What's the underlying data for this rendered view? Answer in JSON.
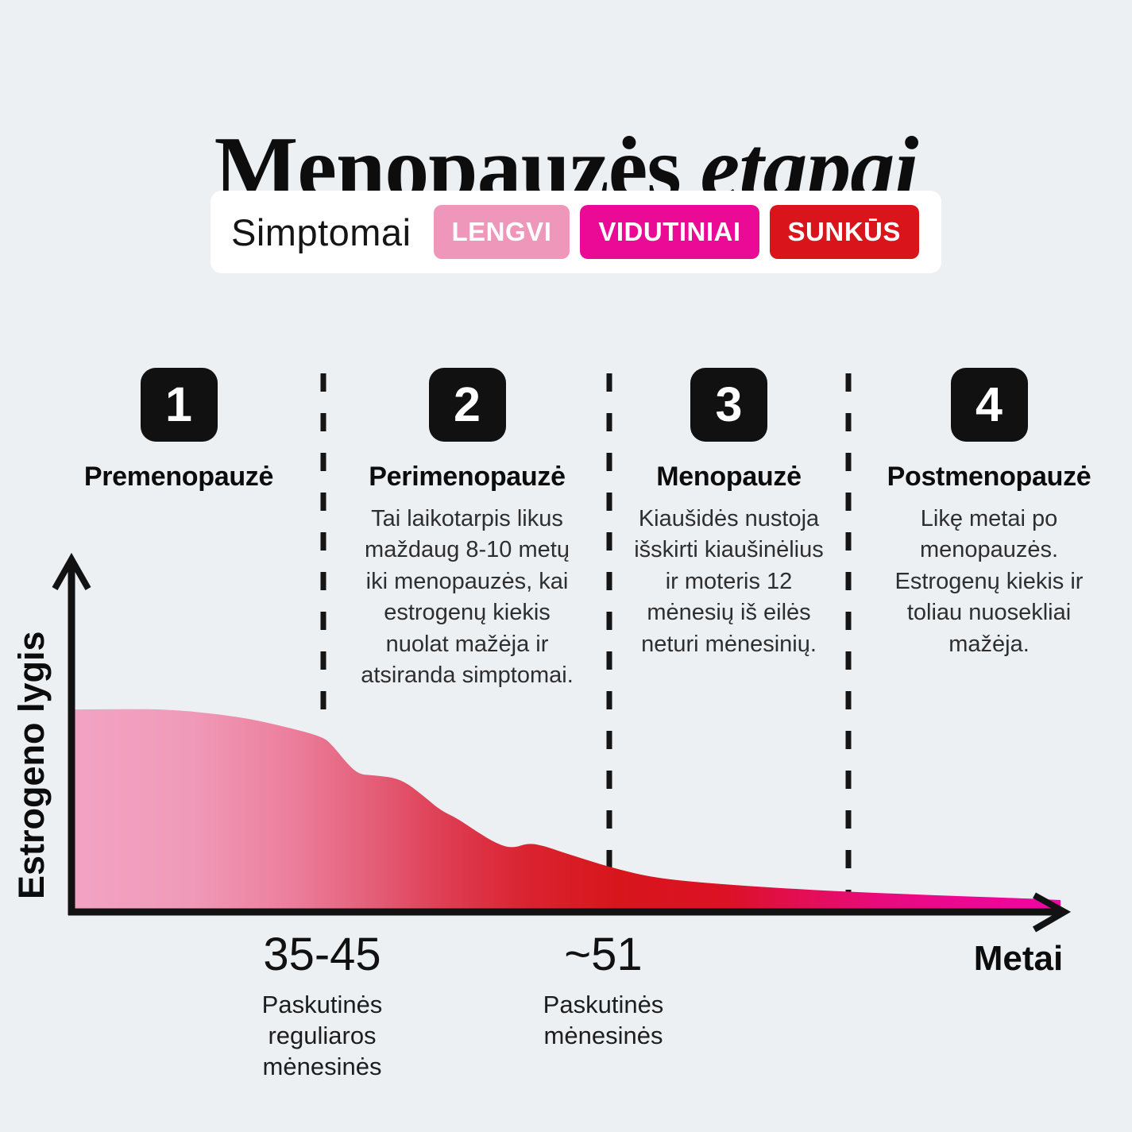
{
  "header": {
    "title_main": "Menopauzės",
    "title_accent": "etapai"
  },
  "legend": {
    "label": "Simptomai",
    "badges": [
      {
        "label": "LENGVI",
        "color": "#ee97ba"
      },
      {
        "label": "VIDUTINIAI",
        "color": "#eb0a96"
      },
      {
        "label": "SUNKŪS",
        "color": "#d9141b"
      }
    ]
  },
  "stages": [
    {
      "number": "1",
      "name": "Premenopauzė",
      "description": ""
    },
    {
      "number": "2",
      "name": "Perimenopauzė",
      "description": "Tai laikotarpis likus maždaug 8-10 metų iki menopauzės, kai estrogenų kiekis nuolat mažėja ir atsiranda simptomai."
    },
    {
      "number": "3",
      "name": "Menopauzė",
      "description": "Kiaušidės nustoja išskirti kiaušinėlius ir moteris 12 mėnesių iš eilės neturi mėnesinių."
    },
    {
      "number": "4",
      "name": "Postmenopauzė",
      "description": "Likę metai po menopauzės. Estrogenų kiekis ir toliau nuosekliai mažėja."
    }
  ],
  "chart_data": {
    "type": "area",
    "title": "",
    "xlabel": "Metai",
    "ylabel": "Estrogeno lygis",
    "x_markers": [
      {
        "value": "35-45",
        "caption": "Paskutinės reguliaros mėnesinės"
      },
      {
        "value": "~51",
        "caption": "Paskutinės mėnesinės"
      }
    ],
    "axis_color": "#121212",
    "grid": false,
    "curve_units": "normalized x (years along axis) vs estrogen level 0-1",
    "curve": [
      [
        0.0,
        0.988
      ],
      [
        0.05,
        0.99
      ],
      [
        0.104,
        0.988
      ],
      [
        0.169,
        0.953
      ],
      [
        0.21,
        0.911
      ],
      [
        0.253,
        0.857
      ],
      [
        0.263,
        0.818
      ],
      [
        0.28,
        0.717
      ],
      [
        0.291,
        0.671
      ],
      [
        0.305,
        0.667
      ],
      [
        0.333,
        0.651
      ],
      [
        0.357,
        0.562
      ],
      [
        0.373,
        0.496
      ],
      [
        0.39,
        0.457
      ],
      [
        0.41,
        0.391
      ],
      [
        0.43,
        0.333
      ],
      [
        0.446,
        0.31
      ],
      [
        0.462,
        0.337
      ],
      [
        0.478,
        0.322
      ],
      [
        0.494,
        0.295
      ],
      [
        0.522,
        0.252
      ],
      [
        0.546,
        0.217
      ],
      [
        0.578,
        0.178
      ],
      [
        0.61,
        0.155
      ],
      [
        0.667,
        0.132
      ],
      [
        0.731,
        0.112
      ],
      [
        0.811,
        0.093
      ],
      [
        0.892,
        0.078
      ],
      [
        0.964,
        0.066
      ],
      [
        1.0,
        0.058
      ]
    ],
    "gradient": [
      {
        "offset": 0.0,
        "color": "#f3a3c3"
      },
      {
        "offset": 0.12,
        "color": "#f09ab9"
      },
      {
        "offset": 0.22,
        "color": "#ec7f9d"
      },
      {
        "offset": 0.3,
        "color": "#e4607a"
      },
      {
        "offset": 0.38,
        "color": "#de3c51"
      },
      {
        "offset": 0.46,
        "color": "#da2330"
      },
      {
        "offset": 0.55,
        "color": "#d7161c"
      },
      {
        "offset": 0.66,
        "color": "#dc1124"
      },
      {
        "offset": 0.74,
        "color": "#e30e55"
      },
      {
        "offset": 0.82,
        "color": "#e90a7d"
      },
      {
        "offset": 0.92,
        "color": "#ee0795"
      },
      {
        "offset": 1.0,
        "color": "#f204a6"
      }
    ]
  }
}
